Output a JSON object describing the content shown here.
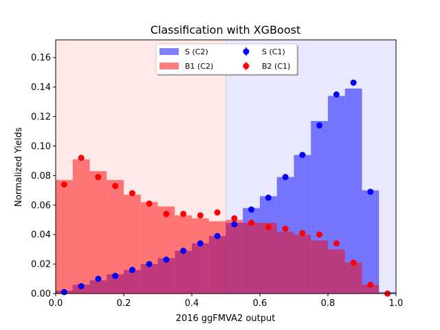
{
  "chart_data": {
    "type": "bar",
    "title": "Classification with XGBoost",
    "xlabel": "2016 ggFMVA2 output",
    "ylabel": "Normalized Yields",
    "xlim": [
      0.0,
      1.0
    ],
    "ylim": [
      0.0,
      0.172
    ],
    "xticks": [
      "0.0",
      "0.2",
      "0.4",
      "0.6",
      "0.8",
      "1.0"
    ],
    "yticks": [
      "0.00",
      "0.02",
      "0.04",
      "0.06",
      "0.08",
      "0.10",
      "0.12",
      "0.14",
      "0.16"
    ],
    "bin_edges": [
      0.0,
      0.05,
      0.1,
      0.15,
      0.2,
      0.25,
      0.3,
      0.35,
      0.4,
      0.45,
      0.5,
      0.55,
      0.6,
      0.65,
      0.7,
      0.75,
      0.8,
      0.85,
      0.9,
      0.95,
      1.0
    ],
    "cut_value": 0.5,
    "legend_position": "upper center",
    "series": [
      {
        "name": "S  (C2)",
        "style": "hist",
        "color": "#0000ff",
        "alpha": 0.5,
        "values": [
          0.002,
          0.006,
          0.009,
          0.013,
          0.016,
          0.02,
          0.024,
          0.029,
          0.034,
          0.039,
          0.048,
          0.058,
          0.066,
          0.079,
          0.094,
          0.117,
          0.134,
          0.139,
          0.07,
          0.001
        ]
      },
      {
        "name": "B1 (C2)",
        "style": "hist",
        "color": "#ff0000",
        "alpha": 0.5,
        "values": [
          0.077,
          0.091,
          0.083,
          0.077,
          0.067,
          0.062,
          0.059,
          0.053,
          0.051,
          0.049,
          0.05,
          0.048,
          0.048,
          0.042,
          0.04,
          0.036,
          0.03,
          0.021,
          0.006,
          0.0
        ]
      },
      {
        "name": "S  (C1)",
        "style": "points",
        "color": "#0000ff",
        "values": [
          0.001,
          0.005,
          0.01,
          0.012,
          0.016,
          0.02,
          0.023,
          0.029,
          0.034,
          0.039,
          0.047,
          0.057,
          0.065,
          0.079,
          0.094,
          0.114,
          0.135,
          0.143,
          0.069,
          0.0
        ]
      },
      {
        "name": "B2 (C1)",
        "style": "points",
        "color": "#ff0000",
        "values": [
          0.074,
          0.092,
          0.079,
          0.073,
          0.068,
          0.061,
          0.054,
          0.054,
          0.053,
          0.055,
          0.051,
          0.048,
          0.045,
          0.044,
          0.041,
          0.04,
          0.034,
          0.021,
          0.006,
          0.0
        ]
      }
    ],
    "background_regions": [
      {
        "from": 0.0,
        "to": 0.5,
        "color": "#ffe8e8"
      },
      {
        "from": 0.5,
        "to": 1.0,
        "color": "#e8e8ff"
      }
    ]
  }
}
